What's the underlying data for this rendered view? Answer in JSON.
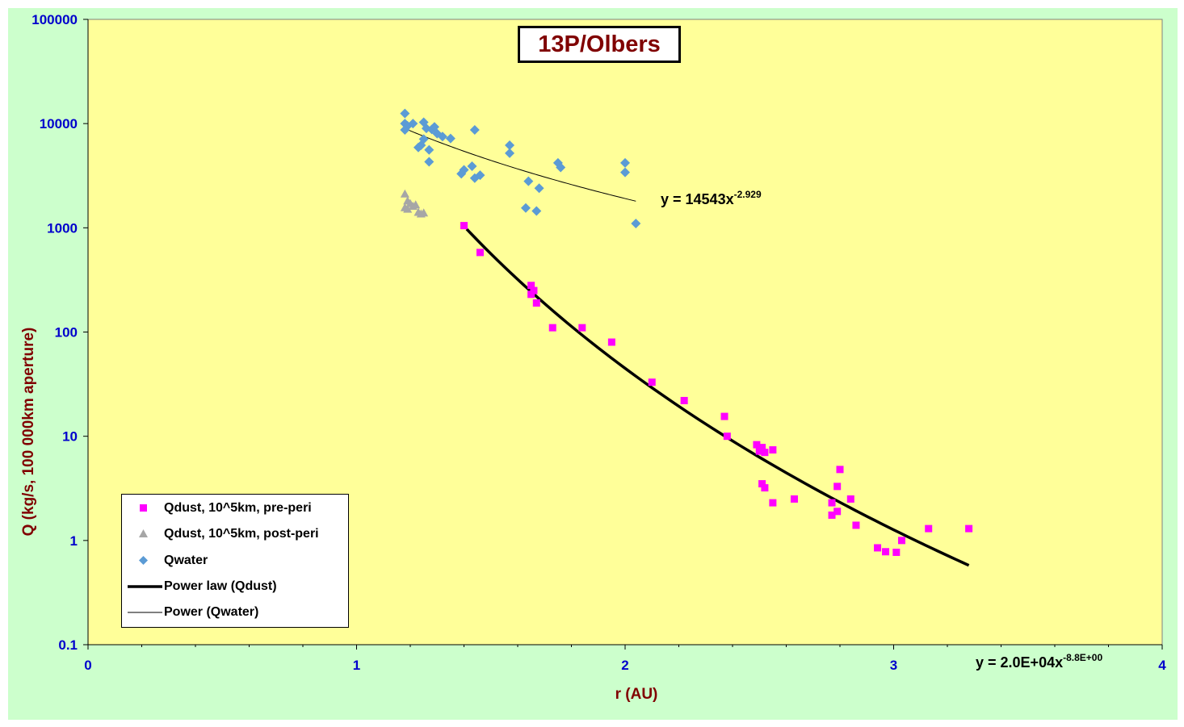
{
  "chart_data": {
    "type": "scatter",
    "title": "13P/Olbers",
    "xlabel": "r (AU)",
    "ylabel": "Q (kg/s, 100 000km aperture)",
    "xlim": [
      0,
      4
    ],
    "ylim": [
      0.1,
      100000
    ],
    "yscale": "log",
    "x_ticks": [
      "0",
      "1",
      "2",
      "3",
      "4"
    ],
    "y_ticks": [
      "0.1",
      "1",
      "10",
      "100",
      "1000",
      "10000",
      "100000"
    ],
    "grid": false,
    "legend_position": "bottom-left",
    "series": [
      {
        "name": "Qdust, 10^5km, pre-peri",
        "marker": "square",
        "color": "#ff00ff",
        "points": [
          [
            1.4,
            1050
          ],
          [
            1.46,
            580
          ],
          [
            1.65,
            280
          ],
          [
            1.66,
            250
          ],
          [
            1.65,
            230
          ],
          [
            1.67,
            190
          ],
          [
            1.73,
            110
          ],
          [
            1.84,
            110
          ],
          [
            1.95,
            80
          ],
          [
            2.1,
            33
          ],
          [
            2.22,
            22
          ],
          [
            2.37,
            15.5
          ],
          [
            2.38,
            10
          ],
          [
            2.49,
            8.3
          ],
          [
            2.51,
            7.8
          ],
          [
            2.5,
            7.2
          ],
          [
            2.52,
            7.0
          ],
          [
            2.55,
            7.4
          ],
          [
            2.51,
            3.5
          ],
          [
            2.52,
            3.2
          ],
          [
            2.55,
            2.3
          ],
          [
            2.63,
            2.5
          ],
          [
            2.77,
            2.3
          ],
          [
            2.77,
            1.75
          ],
          [
            2.79,
            1.9
          ],
          [
            2.8,
            4.8
          ],
          [
            2.79,
            3.3
          ],
          [
            2.84,
            2.5
          ],
          [
            2.86,
            1.4
          ],
          [
            2.94,
            0.85
          ],
          [
            2.97,
            0.78
          ],
          [
            3.01,
            0.77
          ],
          [
            3.03,
            1.0
          ],
          [
            3.13,
            1.3
          ],
          [
            3.28,
            1.3
          ]
        ]
      },
      {
        "name": "Qdust, 10^5km, post-peri",
        "marker": "triangle",
        "color": "#a6a6a6",
        "points": [
          [
            1.18,
            2100
          ],
          [
            1.19,
            1800
          ],
          [
            1.2,
            1700
          ],
          [
            1.21,
            1600
          ],
          [
            1.22,
            1650
          ],
          [
            1.19,
            1500
          ],
          [
            1.23,
            1400
          ],
          [
            1.25,
            1380
          ],
          [
            1.24,
            1350
          ],
          [
            1.18,
            1550
          ]
        ]
      },
      {
        "name": "Qwater",
        "marker": "diamond",
        "color": "#5b9bd5",
        "points": [
          [
            1.18,
            12500
          ],
          [
            1.18,
            10000
          ],
          [
            1.19,
            9500
          ],
          [
            1.18,
            8700
          ],
          [
            1.21,
            10000
          ],
          [
            1.25,
            10300
          ],
          [
            1.26,
            9000
          ],
          [
            1.28,
            8800
          ],
          [
            1.29,
            9300
          ],
          [
            1.3,
            8000
          ],
          [
            1.32,
            7500
          ],
          [
            1.35,
            7200
          ],
          [
            1.25,
            7100
          ],
          [
            1.24,
            6200
          ],
          [
            1.23,
            5900
          ],
          [
            1.27,
            5600
          ],
          [
            1.27,
            4300
          ],
          [
            1.39,
            3300
          ],
          [
            1.4,
            3600
          ],
          [
            1.43,
            3900
          ],
          [
            1.44,
            3000
          ],
          [
            1.46,
            3200
          ],
          [
            1.44,
            8700
          ],
          [
            1.57,
            6200
          ],
          [
            1.57,
            5200
          ],
          [
            1.64,
            2800
          ],
          [
            1.68,
            2400
          ],
          [
            1.63,
            1550
          ],
          [
            1.67,
            1450
          ],
          [
            1.75,
            4200
          ],
          [
            1.76,
            3800
          ],
          [
            2.0,
            4200
          ],
          [
            2.0,
            3400
          ],
          [
            2.04,
            1100
          ]
        ]
      }
    ],
    "fits": [
      {
        "name": "Power law (Qdust)",
        "series": "Qdust, 10^5km, pre-peri",
        "a": 20000,
        "b": -8.8,
        "x_range": [
          1.41,
          3.28
        ],
        "color": "#000000",
        "equation_main": "y = 2.0E+04x",
        "equation_exp": "-8.8E+00"
      },
      {
        "name": "Power (Qwater)",
        "series": "Qwater",
        "a": 14543,
        "b": -2.929,
        "x_range": [
          1.18,
          2.04
        ],
        "color": "#000000",
        "equation_main": "y = 14543x",
        "equation_exp": "-2.929"
      }
    ]
  },
  "colors": {
    "outer_background": "#ccffcc",
    "plot_background": "#ffff99",
    "tick_text": "#0000cc",
    "axis_title_text": "#800000",
    "title_text": "#800000"
  }
}
